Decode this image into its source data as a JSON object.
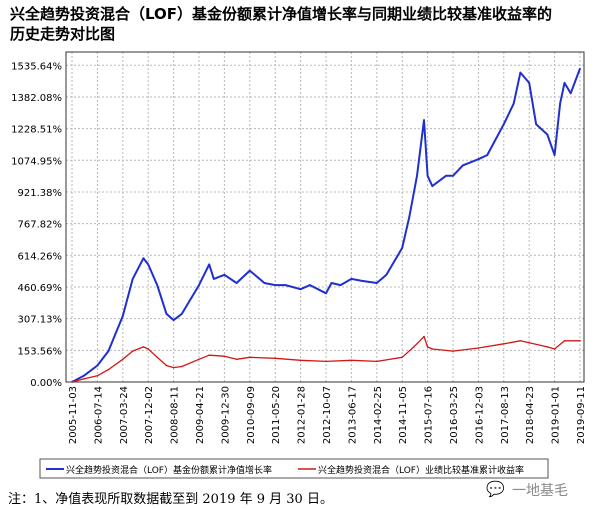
{
  "title_lines": [
    "兴全趋势投资混合（LOF）基金份额累计净值增长率与同期业绩比较基准收益率的",
    "历史走势对比图"
  ],
  "note": "注：1、净值表现所取数据截至到 2019 年 9 月 30 日。",
  "watermark": "一地基毛",
  "colors": {
    "fund": "#1f2fd0",
    "benchmark": "#d01818",
    "grid": "#b8b8b8"
  },
  "chart_data": {
    "type": "line",
    "title": "兴全趋势投资混合（LOF）基金份额累计净值增长率与同期业绩比较基准收益率的历史走势对比图",
    "ylim": [
      0,
      1600
    ],
    "y_ticks": [
      "0.00%",
      "153.56%",
      "307.13%",
      "460.69%",
      "614.26%",
      "767.82%",
      "921.38%",
      "1074.95%",
      "1228.51%",
      "1382.08%",
      "1535.64%"
    ],
    "y_tick_values": [
      0,
      153.56,
      307.13,
      460.69,
      614.26,
      767.82,
      921.38,
      1074.95,
      1228.51,
      1382.08,
      1535.64
    ],
    "x_ticks": [
      "2005-11-03",
      "2006-07-14",
      "2007-03-24",
      "2007-12-02",
      "2008-08-11",
      "2009-04-21",
      "2009-12-30",
      "2010-09-09",
      "2011-05-20",
      "2012-01-28",
      "2012-10-07",
      "2013-06-17",
      "2014-02-25",
      "2014-11-05",
      "2015-07-16",
      "2016-03-25",
      "2016-12-03",
      "2017-08-13",
      "2018-04-23",
      "2019-01-01",
      "2019-09-11"
    ],
    "grid": true,
    "legend_position": "bottom",
    "series": [
      {
        "name": "兴全趋势投资混合（LOF）基金份额累计净值增长率",
        "x": [
          "2005-11-03",
          "2006-03-01",
          "2006-07-14",
          "2006-11-01",
          "2007-03-24",
          "2007-07-01",
          "2007-10-15",
          "2007-12-02",
          "2008-03-01",
          "2008-06-01",
          "2008-08-11",
          "2008-11-01",
          "2009-04-21",
          "2009-08-01",
          "2009-09-15",
          "2009-12-30",
          "2010-05-01",
          "2010-09-09",
          "2011-02-01",
          "2011-05-20",
          "2011-09-01",
          "2012-01-28",
          "2012-05-01",
          "2012-10-07",
          "2012-12-01",
          "2013-03-01",
          "2013-06-17",
          "2013-10-01",
          "2014-02-25",
          "2014-06-01",
          "2014-11-05",
          "2015-01-15",
          "2015-04-01",
          "2015-06-10",
          "2015-07-16",
          "2015-09-01",
          "2016-01-15",
          "2016-03-25",
          "2016-07-01",
          "2016-12-03",
          "2017-03-01",
          "2017-08-13",
          "2017-11-20",
          "2018-01-25",
          "2018-04-23",
          "2018-07-01",
          "2018-10-20",
          "2019-01-01",
          "2019-02-25",
          "2019-04-10",
          "2019-06-10",
          "2019-09-11"
        ],
        "values": [
          0,
          30,
          80,
          150,
          320,
          500,
          600,
          570,
          470,
          330,
          300,
          330,
          470,
          570,
          500,
          520,
          480,
          540,
          480,
          470,
          470,
          450,
          470,
          430,
          480,
          470,
          500,
          490,
          480,
          520,
          650,
          800,
          1000,
          1270,
          1000,
          950,
          1000,
          1000,
          1050,
          1080,
          1100,
          1250,
          1350,
          1500,
          1450,
          1250,
          1200,
          1100,
          1350,
          1450,
          1400,
          1520
        ]
      },
      {
        "name": "兴全趋势投资混合（LOF）业绩比较基准累计收益率",
        "x": [
          "2005-11-03",
          "2006-03-01",
          "2006-07-14",
          "2006-11-01",
          "2007-03-24",
          "2007-07-01",
          "2007-10-15",
          "2007-12-02",
          "2008-03-01",
          "2008-06-01",
          "2008-08-11",
          "2008-11-01",
          "2009-04-21",
          "2009-08-01",
          "2009-12-30",
          "2010-05-01",
          "2010-09-09",
          "2011-05-20",
          "2012-01-28",
          "2012-10-07",
          "2013-06-17",
          "2014-02-25",
          "2014-11-05",
          "2015-03-01",
          "2015-06-10",
          "2015-07-16",
          "2015-09-01",
          "2016-03-25",
          "2016-12-03",
          "2017-08-13",
          "2018-01-25",
          "2018-04-23",
          "2018-10-20",
          "2019-01-01",
          "2019-04-10",
          "2019-09-11"
        ],
        "values": [
          0,
          15,
          30,
          60,
          110,
          150,
          170,
          160,
          120,
          80,
          70,
          75,
          110,
          130,
          125,
          110,
          120,
          115,
          105,
          100,
          105,
          100,
          120,
          170,
          220,
          170,
          160,
          150,
          165,
          185,
          200,
          190,
          170,
          160,
          200,
          200
        ]
      }
    ]
  }
}
